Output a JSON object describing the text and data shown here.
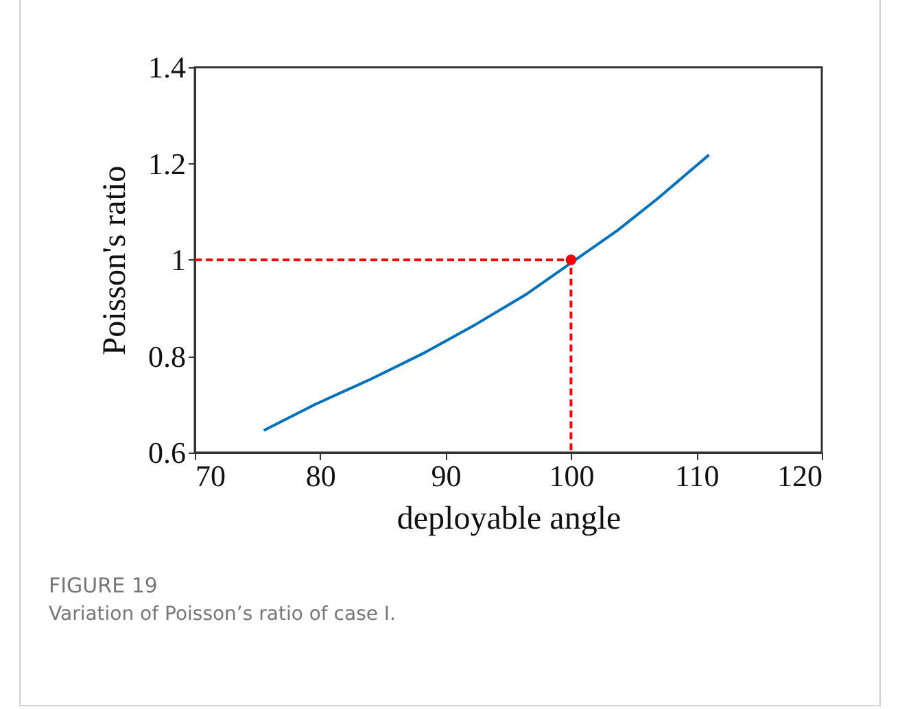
{
  "chart_data": {
    "type": "line",
    "title": "FIGURE 19",
    "subtitle": "Variation of Poisson’s ratio of case I.",
    "xlabel": "deployable angle",
    "ylabel": "Poisson's ratio",
    "xlim": [
      70,
      120
    ],
    "xticks": [
      70,
      80,
      90,
      100,
      110,
      120
    ],
    "ylim": [
      0.6,
      1.4
    ],
    "yticks": [
      0.6,
      0.8,
      1,
      1.2,
      1.4
    ],
    "grid": false,
    "series": [
      {
        "color": "#0072bd",
        "x": [
          75.5,
          79.6,
          84.0,
          88.3,
          92.4,
          96.4,
          100.3,
          103.7,
          106.9,
          111.0
        ],
        "values": [
          0.646,
          0.7,
          0.752,
          0.807,
          0.866,
          0.928,
          0.999,
          1.061,
          1.127,
          1.218
        ]
      },
      {
        "type": "line",
        "color": "#ff0000",
        "line_style": "dashed",
        "x": [
          70,
          100,
          100
        ],
        "values": [
          1,
          1,
          0.6
        ]
      },
      {
        "type": "scatter",
        "color": "#ff0000",
        "marker": "circle",
        "x": [
          100
        ],
        "values": [
          1
        ]
      }
    ]
  }
}
